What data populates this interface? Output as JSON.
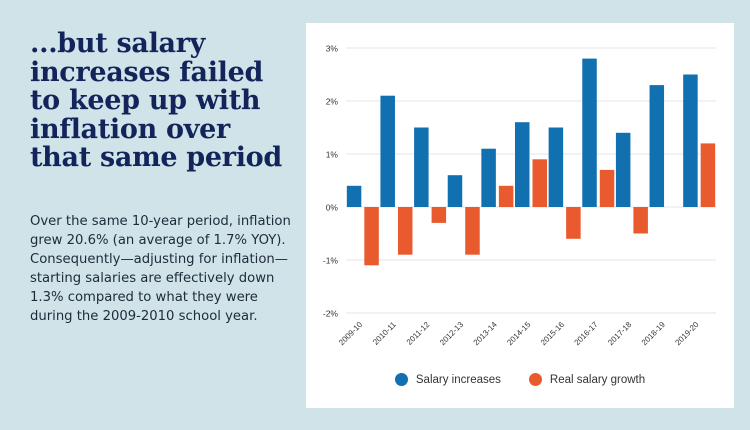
{
  "headline": "...but salary increases failed to keep up with inflation over that same period",
  "body": "Over the same 10-year period, inflation grew 20.6% (an average of 1.7% YOY). Consequently—adjusting for inflation—starting salaries are effectively down 1.3% compared to what they were during the 2009-2010 school year.",
  "colors": {
    "salary": "#1170b0",
    "real": "#e95a2e",
    "grid": "#e6e6e6"
  },
  "chart_data": {
    "type": "bar",
    "title": "",
    "xlabel": "",
    "ylabel": "",
    "ylim": [
      -2,
      3
    ],
    "yticks": [
      3,
      2,
      1,
      0,
      -1,
      -2
    ],
    "ytick_labels": [
      "3%",
      "2%",
      "1%",
      "0%",
      "-1%",
      "-2%"
    ],
    "categories": [
      "2009-10",
      "2010-11",
      "2011-12",
      "2012-13",
      "2013-14",
      "2014-15",
      "2015-16",
      "2016-17",
      "2017-18",
      "2018-19",
      "2019-20"
    ],
    "series": [
      {
        "name": "Salary increases",
        "values": [
          0.4,
          2.1,
          1.5,
          0.6,
          1.1,
          1.6,
          1.5,
          2.8,
          1.4,
          2.3,
          2.5
        ]
      },
      {
        "name": "Real salary growth",
        "values": [
          -1.1,
          -0.9,
          -0.3,
          -0.9,
          0.4,
          0.9,
          -0.6,
          0.7,
          -0.5,
          0.0,
          1.2
        ]
      }
    ],
    "legend_position": "bottom"
  }
}
